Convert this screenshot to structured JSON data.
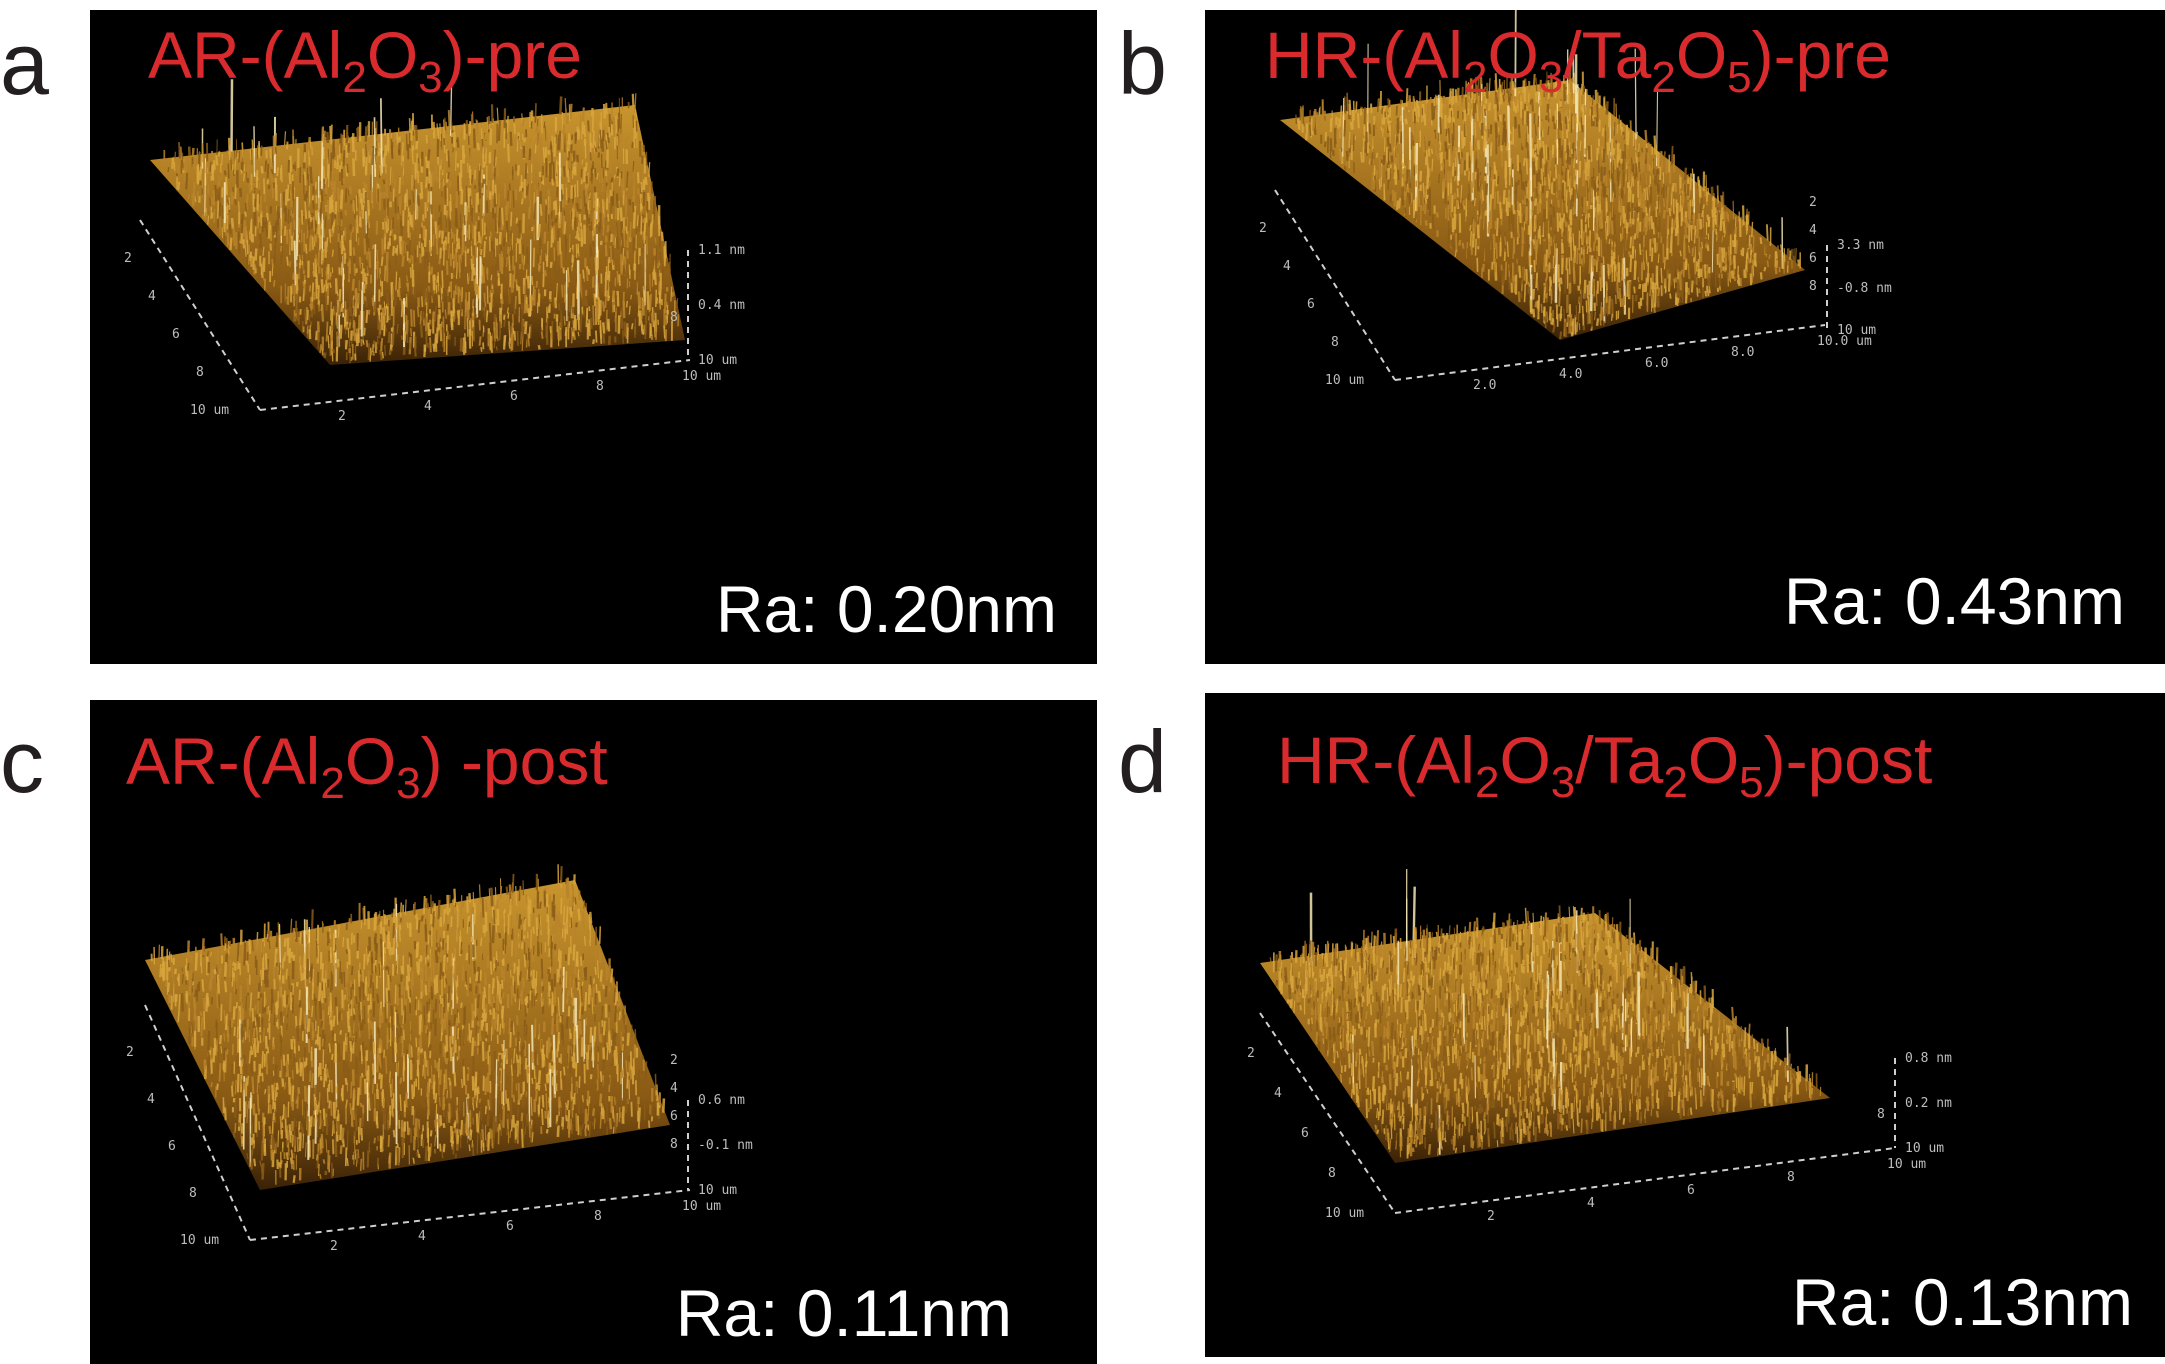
{
  "panels": [
    {
      "id": "a",
      "letter": "a",
      "title": {
        "prefix": "AR-(Al",
        "s1": "2",
        "mid": "O",
        "s2": "3",
        "mid2": "",
        "s3": "",
        "mid3": "",
        "s4": "",
        "suffix": ")-pre"
      },
      "ra": "Ra: 0.20nm",
      "y_ticks": [
        "2",
        "4",
        "6",
        "8",
        "10 um"
      ],
      "x_ticks": [
        "2",
        "4",
        "6",
        "8",
        "10 um"
      ],
      "z_ticks": [
        "1.1 nm",
        "0.4 nm",
        "10 um"
      ],
      "side_ticks": [
        "8"
      ]
    },
    {
      "id": "b",
      "letter": "b",
      "title": {
        "prefix": "HR-(Al",
        "s1": "2",
        "mid": "O",
        "s2": "3",
        "mid2": "/Ta",
        "s3": "2",
        "mid3": "O",
        "s4": "5",
        "suffix": ")-pre"
      },
      "ra": "Ra: 0.43nm",
      "y_ticks": [
        "2",
        "4",
        "6",
        "8",
        "10 um"
      ],
      "x_ticks": [
        "2.0",
        "4.0",
        "6.0",
        "8.0",
        "10.0 um"
      ],
      "z_ticks": [
        "3.3 nm",
        "-0.8 nm",
        "10 um"
      ],
      "side_ticks": [
        "2",
        "4",
        "6",
        "8"
      ]
    },
    {
      "id": "c",
      "letter": "c",
      "title": {
        "prefix": "AR-(Al",
        "s1": "2",
        "mid": "O",
        "s2": "3",
        "mid2": "",
        "s3": "",
        "mid3": "",
        "s4": "",
        "suffix": ") -post"
      },
      "ra": "Ra: 0.11nm",
      "y_ticks": [
        "2",
        "4",
        "6",
        "8",
        "10 um"
      ],
      "x_ticks": [
        "2",
        "4",
        "6",
        "8",
        "10 um"
      ],
      "z_ticks": [
        "0.6 nm",
        "-0.1 nm",
        "10 um"
      ],
      "side_ticks": [
        "2",
        "4",
        "6",
        "8"
      ]
    },
    {
      "id": "d",
      "letter": "d",
      "title": {
        "prefix": "HR-(Al",
        "s1": "2",
        "mid": "O",
        "s2": "3",
        "mid2": "/Ta",
        "s3": "2",
        "mid3": "O",
        "s4": "5",
        "suffix": ")-post"
      },
      "ra": "Ra: 0.13nm",
      "y_ticks": [
        "2",
        "4",
        "6",
        "8",
        "10 um"
      ],
      "x_ticks": [
        "2",
        "4",
        "6",
        "8",
        "10 um"
      ],
      "z_ticks": [
        "0.8 nm",
        "0.2 nm",
        "10 um"
      ],
      "side_ticks": [
        "8"
      ]
    }
  ],
  "colors": {
    "surface_base": "#8a5a14",
    "surface_mid": "#c9952e",
    "surface_high": "#f4e6b4",
    "title": "#d92b2e",
    "ra_text": "#ffffff",
    "panel_letter": "#231f20",
    "panel_bg": "#000000"
  }
}
